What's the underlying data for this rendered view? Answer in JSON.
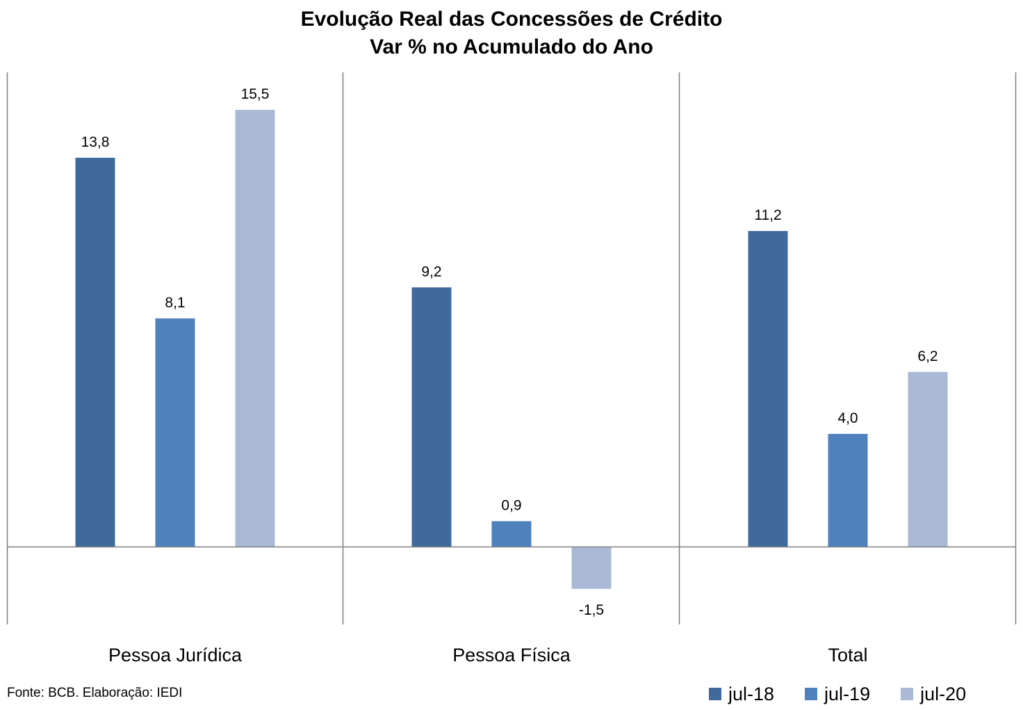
{
  "chart_data": {
    "type": "bar",
    "title": "Evolução Real das Concessões de Crédito",
    "subtitle": "Var % no Acumulado do Ano",
    "categories": [
      "Pessoa Jurídica",
      "Pessoa Física",
      "Total"
    ],
    "series": [
      {
        "name": "jul-18",
        "color": "#3F6A9B",
        "values": [
          13.8,
          9.2,
          11.2
        ],
        "labels": [
          "13,8",
          "9,2",
          "11,2"
        ]
      },
      {
        "name": "jul-19",
        "color": "#4F81BD",
        "values": [
          8.1,
          0.9,
          4.0
        ],
        "labels": [
          "8,1",
          "0,9",
          "4,0"
        ]
      },
      {
        "name": "jul-20",
        "color": "#AAB9D6",
        "values": [
          15.5,
          -1.5,
          6.2
        ],
        "labels": [
          "15,5",
          "-1,5",
          "6,2"
        ]
      }
    ],
    "ylim": [
      -2.8,
      17.0
    ],
    "legend": "bottom-right",
    "grid": false,
    "source": "Fonte: BCB. Elaboração: IEDI"
  }
}
